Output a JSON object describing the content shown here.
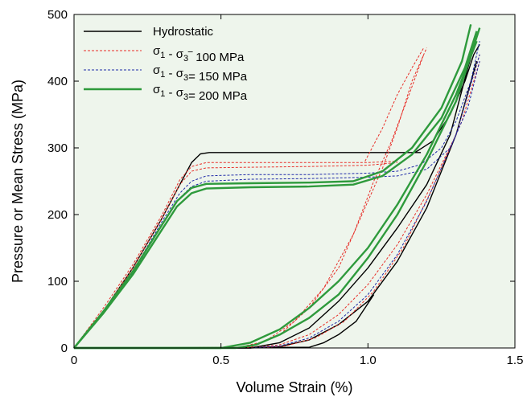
{
  "chart_data": {
    "type": "line",
    "title": "",
    "xlabel": "Volume Strain (%)",
    "ylabel": "Pressure or Mean Stress (MPa)",
    "xlim": [
      0,
      1.5
    ],
    "ylim": [
      0,
      500
    ],
    "x_ticks": [
      0,
      0.5,
      1.0,
      1.5
    ],
    "x_tick_labels": [
      "0",
      "0.5",
      "1.0",
      "1.5"
    ],
    "y_ticks": [
      0,
      100,
      200,
      300,
      400,
      500
    ],
    "y_tick_labels": [
      "0",
      "100",
      "200",
      "300",
      "400",
      "500"
    ],
    "grid": false,
    "plot_background": "#eef5ec",
    "legend_position": "top-left",
    "legend": [
      {
        "sigma1": "σ",
        "sub1": "1",
        "dash": " - ",
        "sigma3": "σ",
        "sub3": "3",
        "rest": "",
        "text": "Hydrostatic",
        "plain": true
      },
      {
        "sigma1": "σ",
        "sub1": "1",
        "dash": " - ",
        "sigma3": "σ",
        "sub3": "3",
        "rest": "‾  100 MPa",
        "plain": false
      },
      {
        "sigma1": "σ",
        "sub1": "1",
        "dash": " - ",
        "sigma3": "σ",
        "sub3": "3",
        "rest": "=  150 MPa",
        "plain": false
      },
      {
        "sigma1": "σ",
        "sub1": "1",
        "dash": " - ",
        "sigma3": "σ",
        "sub3": "3",
        "rest": "=  200 MPa",
        "plain": false
      }
    ],
    "series": [
      {
        "name": "Hydrostatic",
        "color": "#000000",
        "style": "solid",
        "width": 1.4,
        "curves": [
          [
            [
              0,
              0
            ],
            [
              0.1,
              55
            ],
            [
              0.2,
              120
            ],
            [
              0.3,
              195
            ],
            [
              0.36,
              245
            ],
            [
              0.4,
              278
            ],
            [
              0.43,
              291
            ],
            [
              0.46,
              293
            ],
            [
              0.6,
              293
            ],
            [
              0.8,
              293
            ],
            [
              1.0,
              293
            ],
            [
              1.18,
              293
            ]
          ],
          [
            [
              0,
              0
            ],
            [
              0.6,
              0
            ],
            [
              0.7,
              8
            ],
            [
              0.8,
              30
            ],
            [
              0.9,
              70
            ],
            [
              1.0,
              120
            ],
            [
              1.1,
              180
            ],
            [
              1.2,
              245
            ],
            [
              1.28,
              320
            ],
            [
              1.34,
              420
            ],
            [
              1.36,
              450
            ]
          ],
          [
            [
              1.16,
              293
            ],
            [
              1.22,
              310
            ],
            [
              1.28,
              350
            ],
            [
              1.33,
              400
            ],
            [
              1.36,
              440
            ],
            [
              1.38,
              455
            ]
          ],
          [
            [
              0,
              0
            ],
            [
              0.6,
              0
            ],
            [
              0.7,
              2
            ],
            [
              0.8,
              12
            ],
            [
              0.9,
              35
            ],
            [
              1.0,
              70
            ],
            [
              1.1,
              130
            ],
            [
              1.2,
              210
            ],
            [
              1.3,
              320
            ],
            [
              1.37,
              430
            ]
          ],
          [
            [
              0,
              0
            ],
            [
              0.8,
              1
            ],
            [
              0.85,
              8
            ],
            [
              0.9,
              20
            ],
            [
              0.96,
              40
            ],
            [
              1.02,
              80
            ]
          ]
        ]
      },
      {
        "name": "σ1 - σ3 = 100 MPa",
        "color": "#e8302a",
        "style": "dash",
        "width": 1.0,
        "curves": [
          [
            [
              0,
              0
            ],
            [
              0.1,
              60
            ],
            [
              0.2,
              125
            ],
            [
              0.3,
              200
            ],
            [
              0.36,
              252
            ],
            [
              0.4,
              272
            ],
            [
              0.45,
              278
            ],
            [
              0.6,
              278
            ],
            [
              0.8,
              278
            ],
            [
              1.0,
              278
            ],
            [
              1.1,
              280
            ]
          ],
          [
            [
              0,
              0
            ],
            [
              0.1,
              55
            ],
            [
              0.2,
              120
            ],
            [
              0.3,
              195
            ],
            [
              0.36,
              245
            ],
            [
              0.4,
              265
            ],
            [
              0.45,
              270
            ],
            [
              0.6,
              271
            ],
            [
              0.8,
              272
            ],
            [
              1.0,
              274
            ],
            [
              1.1,
              278
            ]
          ],
          [
            [
              0,
              0
            ],
            [
              0.6,
              1
            ],
            [
              0.7,
              20
            ],
            [
              0.8,
              60
            ],
            [
              0.9,
              120
            ],
            [
              0.98,
              200
            ],
            [
              1.05,
              270
            ],
            [
              1.1,
              330
            ],
            [
              1.15,
              400
            ],
            [
              1.2,
              450
            ]
          ],
          [
            [
              0,
              0
            ],
            [
              0.55,
              0
            ],
            [
              0.65,
              10
            ],
            [
              0.75,
              40
            ],
            [
              0.85,
              90
            ],
            [
              0.95,
              170
            ],
            [
              1.02,
              250
            ],
            [
              1.08,
              310
            ],
            [
              1.14,
              380
            ],
            [
              1.19,
              440
            ]
          ],
          [
            [
              0.99,
              280
            ],
            [
              1.05,
              330
            ],
            [
              1.1,
              380
            ],
            [
              1.15,
              420
            ],
            [
              1.19,
              450
            ]
          ],
          [
            [
              0,
              0
            ],
            [
              0.6,
              0
            ],
            [
              0.7,
              5
            ],
            [
              0.8,
              20
            ],
            [
              0.9,
              50
            ],
            [
              1.0,
              95
            ],
            [
              1.1,
              155
            ],
            [
              1.2,
              230
            ],
            [
              1.3,
              320
            ],
            [
              1.38,
              440
            ]
          ],
          [
            [
              0,
              0
            ],
            [
              0.62,
              0
            ],
            [
              0.72,
              3
            ],
            [
              0.82,
              15
            ],
            [
              0.92,
              40
            ],
            [
              1.02,
              85
            ],
            [
              1.12,
              150
            ],
            [
              1.22,
              240
            ],
            [
              1.32,
              340
            ],
            [
              1.38,
              430
            ]
          ]
        ]
      },
      {
        "name": "σ1 - σ3 = 150 MPa",
        "color": "#1f2aa8",
        "style": "dash",
        "width": 1.0,
        "curves": [
          [
            [
              0,
              0
            ],
            [
              0.1,
              55
            ],
            [
              0.2,
              115
            ],
            [
              0.3,
              190
            ],
            [
              0.36,
              232
            ],
            [
              0.4,
              250
            ],
            [
              0.45,
              258
            ],
            [
              0.6,
              260
            ],
            [
              0.8,
              260
            ],
            [
              1.0,
              262
            ],
            [
              1.1,
              265
            ],
            [
              1.18,
              275
            ],
            [
              1.25,
              300
            ],
            [
              1.3,
              340
            ],
            [
              1.35,
              400
            ],
            [
              1.38,
              460
            ]
          ],
          [
            [
              0,
              0
            ],
            [
              0.1,
              52
            ],
            [
              0.2,
              112
            ],
            [
              0.3,
              185
            ],
            [
              0.36,
              225
            ],
            [
              0.4,
              242
            ],
            [
              0.45,
              250
            ],
            [
              0.6,
              253
            ],
            [
              0.8,
              254
            ],
            [
              1.0,
              256
            ],
            [
              1.1,
              258
            ],
            [
              1.2,
              268
            ],
            [
              1.28,
              300
            ],
            [
              1.34,
              360
            ],
            [
              1.38,
              430
            ]
          ],
          [
            [
              0,
              0
            ],
            [
              0.6,
              0
            ],
            [
              0.7,
              3
            ],
            [
              0.8,
              15
            ],
            [
              0.9,
              40
            ],
            [
              1.0,
              80
            ],
            [
              1.1,
              140
            ],
            [
              1.2,
              220
            ],
            [
              1.3,
              320
            ],
            [
              1.38,
              440
            ]
          ]
        ]
      },
      {
        "name": "σ1 - σ3 = 200 MPa",
        "color": "#2e9a3c",
        "style": "solid",
        "width": 2.4,
        "curves": [
          [
            [
              0,
              0
            ],
            [
              0.1,
              55
            ],
            [
              0.2,
              115
            ],
            [
              0.3,
              185
            ],
            [
              0.35,
              220
            ],
            [
              0.4,
              240
            ],
            [
              0.45,
              246
            ],
            [
              0.6,
              247
            ],
            [
              0.8,
              248
            ],
            [
              0.95,
              250
            ],
            [
              1.05,
              265
            ],
            [
              1.15,
              300
            ],
            [
              1.25,
              360
            ],
            [
              1.32,
              430
            ],
            [
              1.35,
              485
            ]
          ],
          [
            [
              0,
              0
            ],
            [
              0.1,
              52
            ],
            [
              0.2,
              110
            ],
            [
              0.3,
              178
            ],
            [
              0.35,
              212
            ],
            [
              0.4,
              232
            ],
            [
              0.45,
              239
            ],
            [
              0.6,
              241
            ],
            [
              0.8,
              242
            ],
            [
              0.95,
              245
            ],
            [
              1.05,
              258
            ],
            [
              1.15,
              290
            ],
            [
              1.25,
              345
            ],
            [
              1.33,
              420
            ],
            [
              1.37,
              475
            ]
          ],
          [
            [
              0,
              0
            ],
            [
              0.55,
              0
            ],
            [
              0.62,
              5
            ],
            [
              0.7,
              20
            ],
            [
              0.8,
              45
            ],
            [
              0.9,
              80
            ],
            [
              1.0,
              135
            ],
            [
              1.1,
              200
            ],
            [
              1.2,
              280
            ],
            [
              1.3,
              370
            ],
            [
              1.38,
              480
            ]
          ],
          [
            [
              0,
              0
            ],
            [
              0.5,
              0
            ],
            [
              0.6,
              8
            ],
            [
              0.7,
              28
            ],
            [
              0.8,
              60
            ],
            [
              0.9,
              100
            ],
            [
              1.0,
              150
            ],
            [
              1.1,
              215
            ],
            [
              1.2,
              290
            ],
            [
              1.3,
              380
            ],
            [
              1.37,
              460
            ]
          ]
        ]
      },
      {
        "name": "axis-baseline-red",
        "color": "#b3231c",
        "style": "solid",
        "width": 1.0,
        "curves": [
          [
            [
              0,
              0
            ],
            [
              1.5,
              0
            ]
          ]
        ]
      }
    ]
  }
}
